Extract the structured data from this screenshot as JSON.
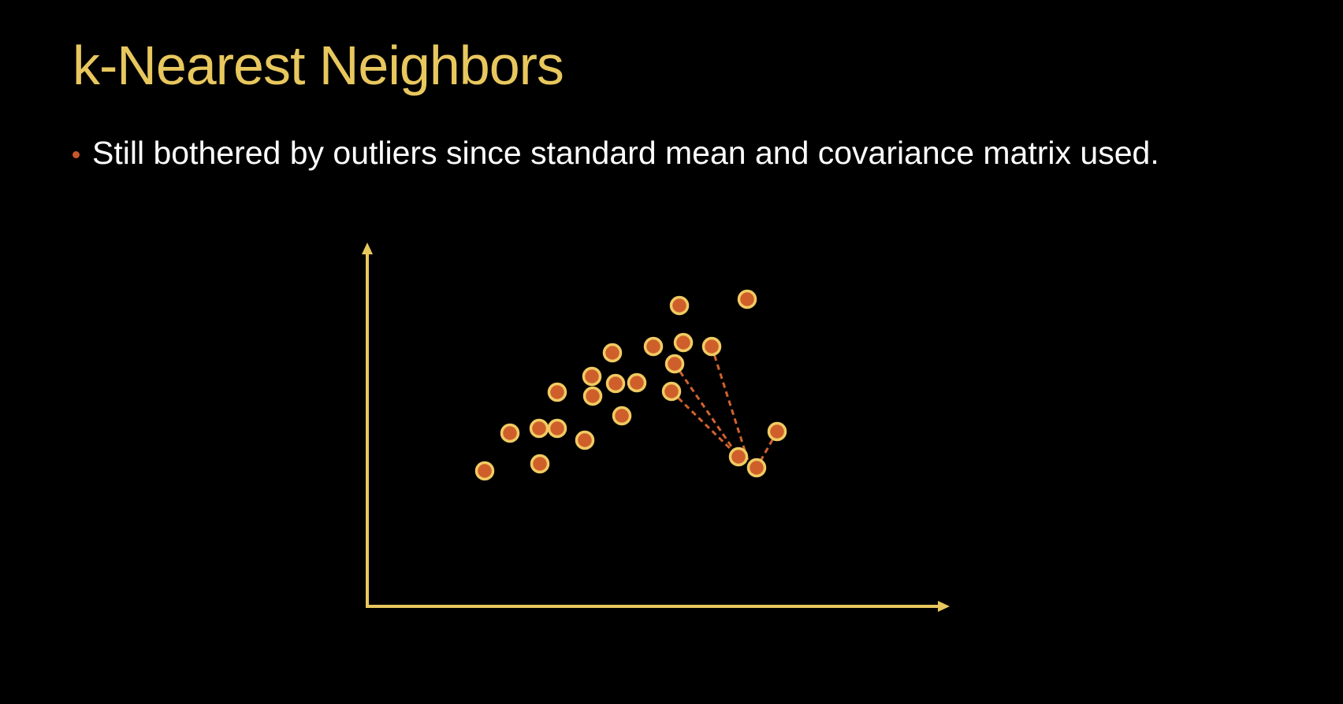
{
  "slide": {
    "title": "k-Nearest Neighbors",
    "bullet": "Still bothered by outliers since standard mean and covariance matrix used."
  },
  "colors": {
    "background": "#000000",
    "title": "#E8C75E",
    "text": "#FFFFFF",
    "bullet_dot": "#C8562B",
    "axis": "#E8C75E",
    "point_fill": "#CF5F2A",
    "point_stroke": "#F0CB62",
    "neighbor_link": "#D0622F"
  }
}
